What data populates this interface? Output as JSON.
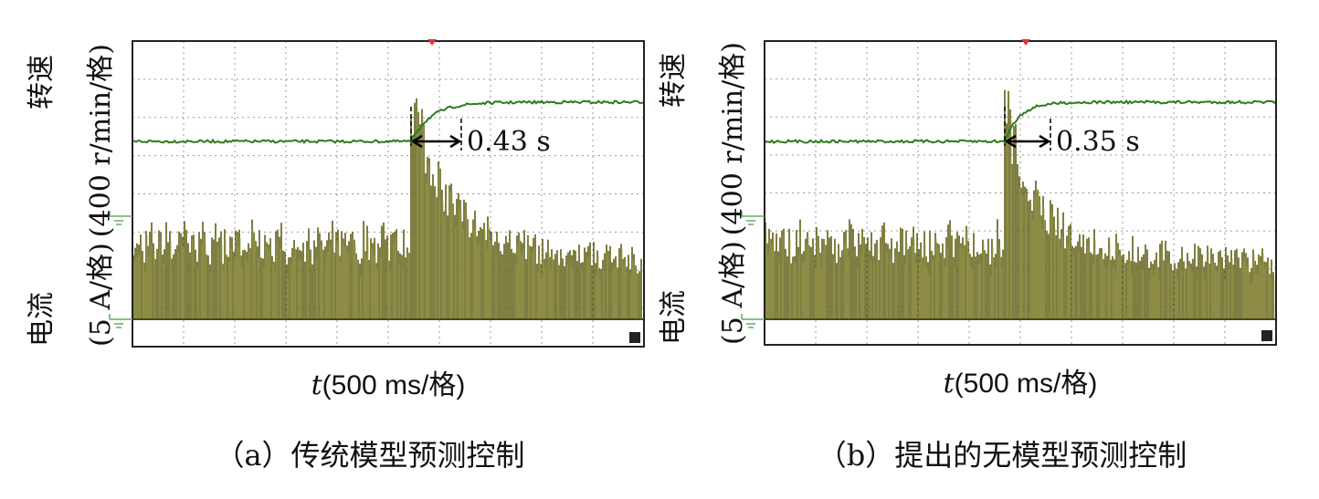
{
  "panels": [
    {
      "speed_label": "转速",
      "speed_unit": "(400 r/min/格)",
      "current_label": "电流",
      "current_unit": "(5 A/格)",
      "x_var": "t",
      "x_unit": "(500 ms/格)",
      "annotation": "0.43 s",
      "caption": "（a）传统模型预测控制"
    },
    {
      "speed_label": "转速",
      "speed_unit": "(400 r/min/格)",
      "current_label": "电流",
      "current_unit": "(5 A/格)",
      "x_var": "t",
      "x_unit": "(500 ms/格)",
      "annotation": "0.35 s",
      "caption": "（b）提出的无模型预测控制"
    }
  ]
}
